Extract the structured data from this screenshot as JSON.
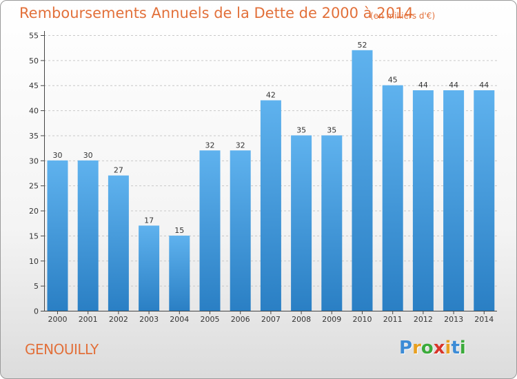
{
  "header": {
    "title": "Remboursements Annuels de la Dette de 2000 à 2014",
    "unit": "(en milliers d'€)"
  },
  "footer": {
    "place": "GENOUILLY",
    "logo_letters": [
      {
        "ch": "P",
        "color": "#3c8bd6"
      },
      {
        "ch": "r",
        "color": "#e8a020"
      },
      {
        "ch": "o",
        "color": "#3bab3b"
      },
      {
        "ch": "x",
        "color": "#d8352a"
      },
      {
        "ch": "i",
        "color": "#e8a020"
      },
      {
        "ch": "t",
        "color": "#3c8bd6"
      },
      {
        "ch": "i",
        "color": "#3bab3b"
      }
    ]
  },
  "colors": {
    "title": "#e2703a",
    "bar_light": "#5fb2ee",
    "bar_dark": "#2a7fc4",
    "grid": "#c8c8c8",
    "axis": "#444444"
  },
  "chart_data": {
    "type": "bar",
    "title": "Remboursements Annuels de la Dette de 2000 à 2014",
    "subtitle": "(en milliers d'€)",
    "categories": [
      "2000",
      "2001",
      "2002",
      "2003",
      "2004",
      "2005",
      "2006",
      "2007",
      "2008",
      "2009",
      "2010",
      "2011",
      "2012",
      "2013",
      "2014"
    ],
    "values": [
      30,
      30,
      27,
      17,
      15,
      32,
      32,
      42,
      35,
      35,
      52,
      45,
      44,
      44,
      44
    ],
    "ylim": [
      0,
      55
    ],
    "yticks": [
      0,
      5,
      10,
      15,
      20,
      25,
      30,
      35,
      40,
      45,
      50,
      55
    ],
    "xlabel": "",
    "ylabel": "",
    "grid": true,
    "data_labels": true
  }
}
